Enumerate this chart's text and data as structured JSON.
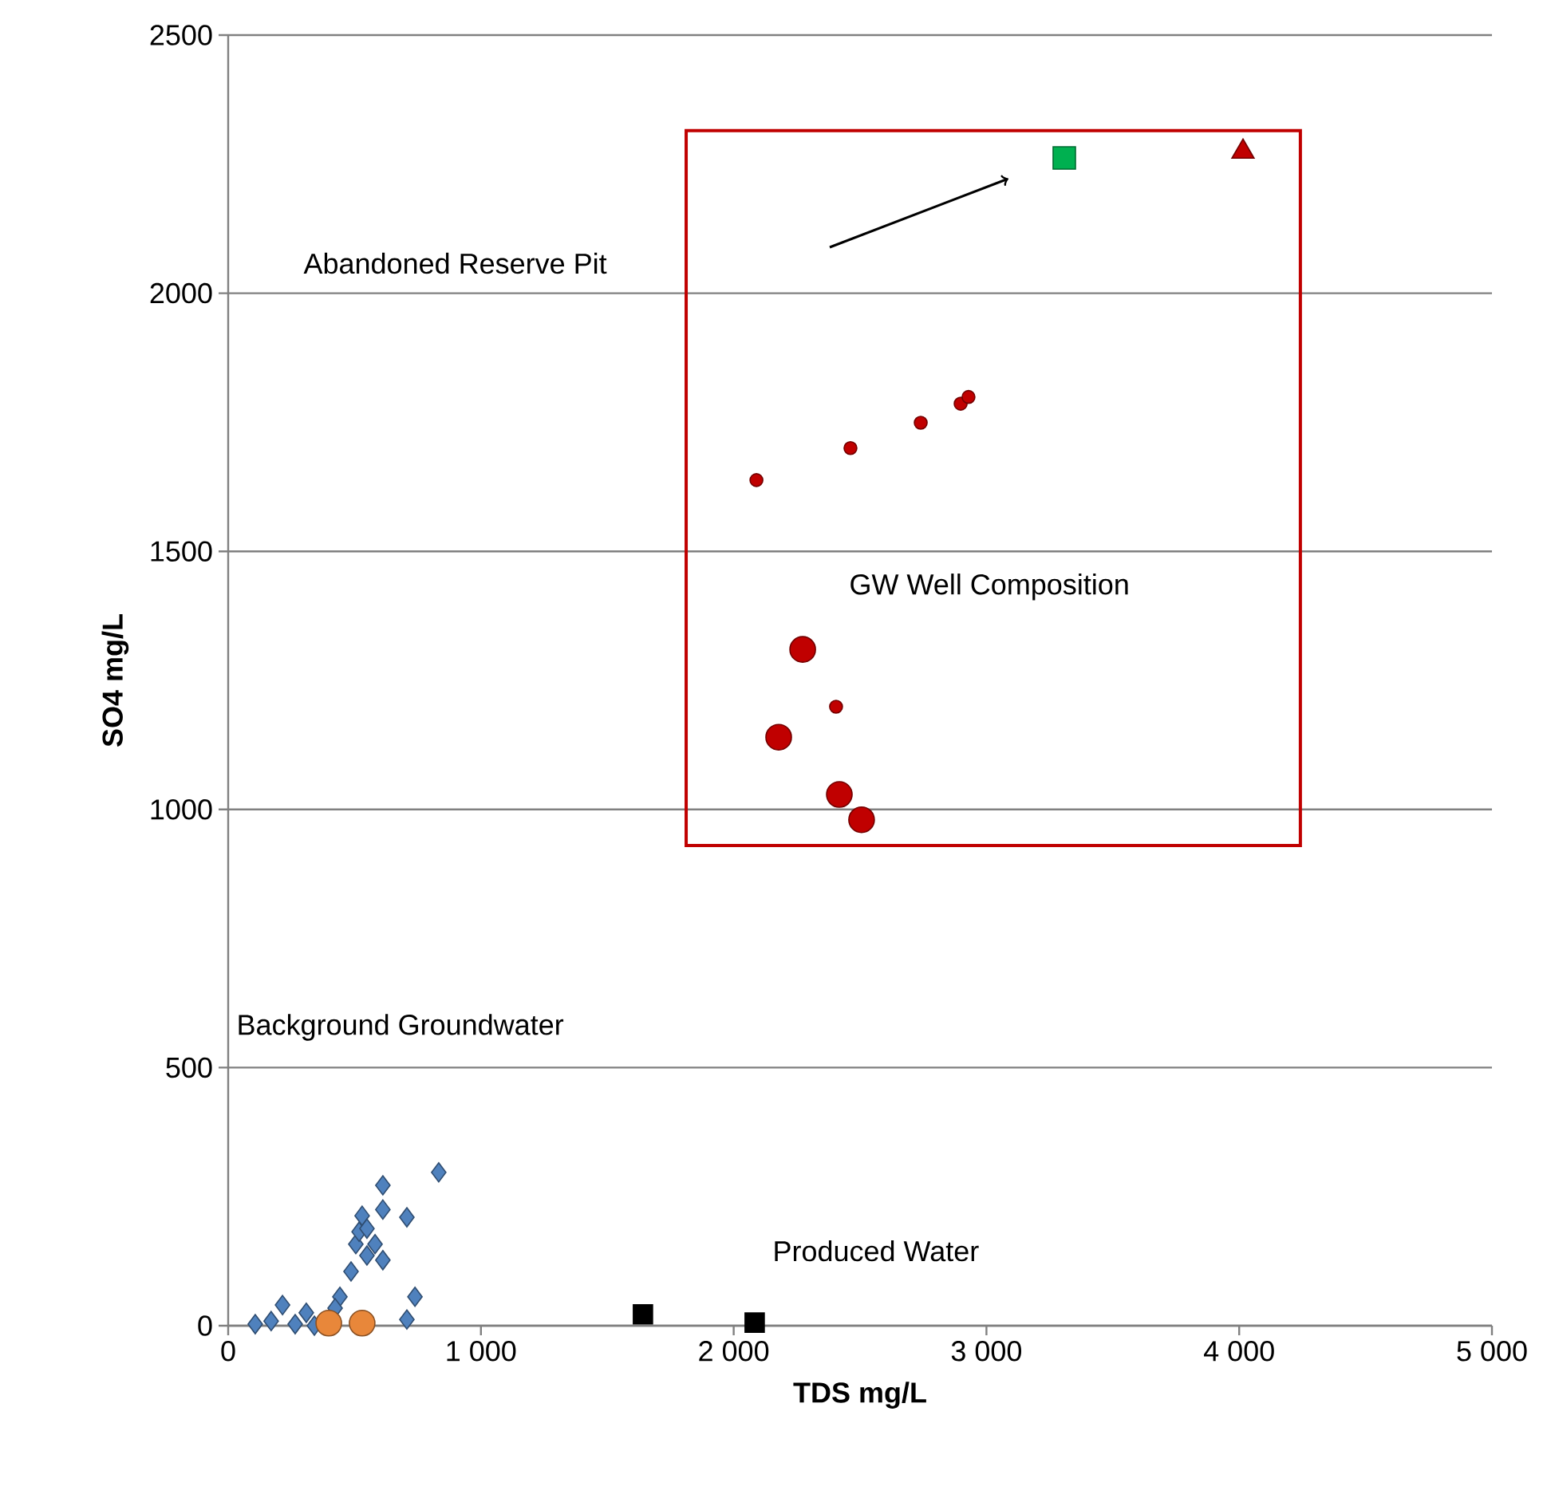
{
  "chart_data": {
    "type": "scatter",
    "xlabel": "TDS mg/L",
    "ylabel": "SO4 mg/L",
    "xlim": [
      0,
      5000
    ],
    "ylim": [
      0,
      2500
    ],
    "xticks": [
      0,
      {
        "value": 1000,
        "label": "1 000"
      },
      {
        "value": 2000,
        "label": "2 000"
      },
      {
        "value": 3000,
        "label": "3 000"
      },
      {
        "value": 4000,
        "label": "4 000"
      },
      {
        "value": 5000,
        "label": "5 000"
      }
    ],
    "yticks": [
      0,
      500,
      1000,
      1500,
      2000,
      2500
    ],
    "grid": "y",
    "annotations": [
      "Abandoned Reserve Pit",
      "GW Well Composition",
      "Background  Groundwater",
      "Produced  Water"
    ],
    "series": [
      {
        "color": "#4f81bd",
        "marker": "diamond",
        "x": [
          107,
          170,
          215,
          265,
          309,
          341,
          442,
          473,
          486,
          505,
          518,
          530,
          549,
          562,
          581,
          612,
          612,
          612,
          707,
          833,
          739,
          707,
          530,
          423,
          549
        ],
        "values": [
          3,
          9,
          40,
          3,
          25,
          0,
          56,
          null,
          105,
          158,
          182,
          213,
          188,
          null,
          158,
          127,
          272,
          225,
          210,
          297,
          56,
          12,
          null,
          34,
          136
        ]
      },
      {
        "color": "#e8873a",
        "marker": "circle",
        "x": [
          398,
          530
        ],
        "values": [
          5,
          5
        ]
      },
      {
        "color": "#000000",
        "marker": "square",
        "x": [
          1641,
          2083
        ],
        "values": [
          22,
          6
        ]
      },
      {
        "color": "#c00000",
        "marker": "circle",
        "x": [
          2090,
          2462,
          2740,
          2898,
          2929,
          2405
        ],
        "values": [
          1638,
          1700,
          1749,
          1786,
          1799,
          1199
        ]
      },
      {
        "color": "#c00000",
        "marker": "circle",
        "x": [
          2273,
          2178,
          2418,
          2506
        ],
        "values": [
          1310,
          1140,
          1029,
          980
        ]
      },
      {
        "color": "#00b050",
        "marker": "square",
        "x": [
          3308
        ],
        "values": [
          2262
        ]
      },
      {
        "color": "#c00000",
        "marker": "triangle",
        "x": [
          4015
        ],
        "values": [
          2274
        ]
      }
    ]
  }
}
